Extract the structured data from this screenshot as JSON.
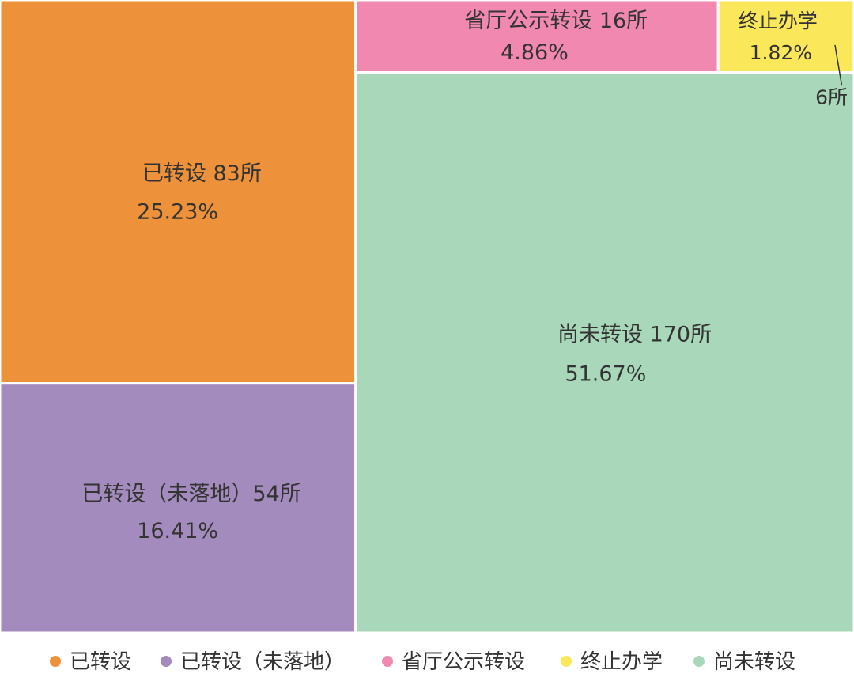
{
  "chart_data": {
    "type": "treemap",
    "unit": "所",
    "items": [
      {
        "name": "已转设",
        "display": "已转设  83所",
        "value": 83,
        "percent": "25.23%",
        "color": "#ED923A"
      },
      {
        "name": "已转设（未落地）",
        "display": "已转设（未落地）54所",
        "value": 54,
        "percent": "16.41%",
        "color": "#A38BBE"
      },
      {
        "name": "省厅公示转设",
        "display": "省厅公示转设 16所",
        "value": 16,
        "percent": "4.86%",
        "color": "#F088AF"
      },
      {
        "name": "终止办学",
        "display": "终止办学",
        "value": 6,
        "percent": "1.82%",
        "count_label": "6所",
        "color": "#FBE85A"
      },
      {
        "name": "尚未转设",
        "display": "尚未转设 170所",
        "value": 170,
        "percent": "51.67%",
        "color": "#A8D7BA"
      }
    ],
    "legend": {
      "position": "bottom",
      "entries": [
        "已转设",
        "已转设（未落地）",
        "省厅公示转设",
        "终止办学",
        "尚未转设"
      ]
    }
  }
}
